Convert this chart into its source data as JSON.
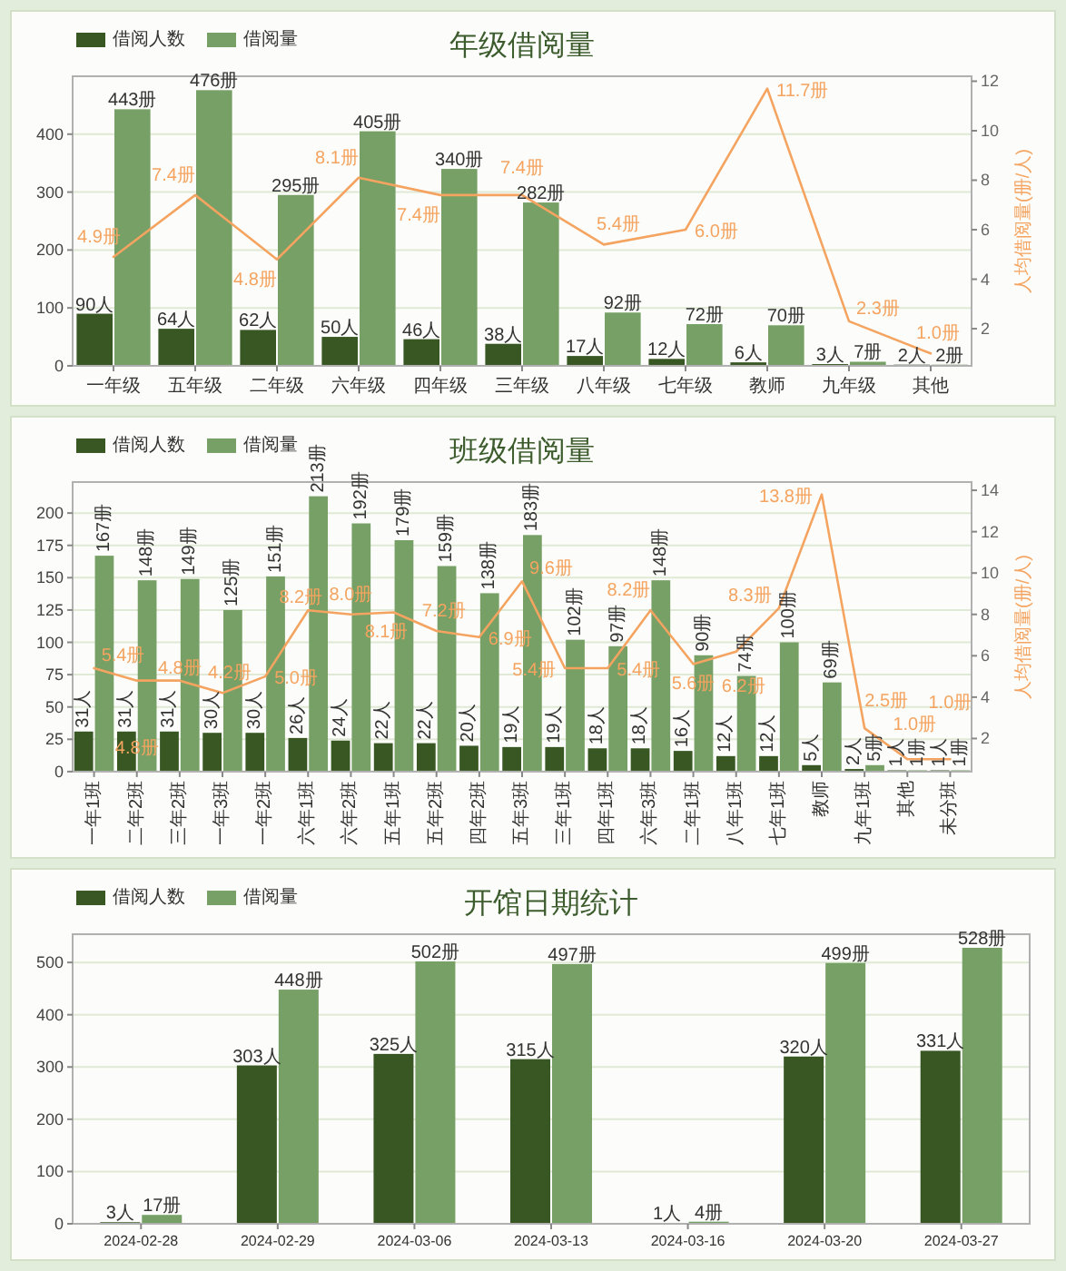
{
  "chart_data": [
    {
      "type": "bar",
      "title": "年级借阅量",
      "categories": [
        "一年级",
        "五年级",
        "二年级",
        "六年级",
        "四年级",
        "三年级",
        "八年级",
        "七年级",
        "教师",
        "九年级",
        "其他"
      ],
      "series": [
        {
          "name": "借阅人数",
          "color": "#385723",
          "values": [
            90,
            64,
            62,
            50,
            46,
            38,
            17,
            12,
            6,
            3,
            2
          ],
          "value_labels": [
            "90人",
            "64人",
            "62人",
            "50人",
            "46人",
            "38人",
            "17人",
            "12人",
            "6人",
            "3人",
            "2人"
          ]
        },
        {
          "name": "借阅量",
          "color": "#76a065",
          "values": [
            443,
            476,
            295,
            405,
            340,
            282,
            92,
            72,
            70,
            7,
            2
          ],
          "value_labels": [
            "443册",
            "476册",
            "295册",
            "405册",
            "340册",
            "282册",
            "92册",
            "72册",
            "70册",
            "7册",
            "2册"
          ]
        },
        {
          "type": "line",
          "axis": "y2",
          "color": "#f4a460",
          "values": [
            4.9,
            7.4,
            4.8,
            8.1,
            7.4,
            7.4,
            5.4,
            6.0,
            11.7,
            2.3,
            1.0
          ],
          "value_labels": [
            "4.9册",
            "7.4册",
            "4.8册",
            "8.1册",
            "7.4册",
            "7.4册",
            "5.4册",
            "6.0册",
            "11.7册",
            "2.3册",
            "1.0册"
          ]
        }
      ],
      "ylim": [
        0,
        500
      ],
      "yticks": [
        0,
        100,
        200,
        300,
        400
      ],
      "y2label": "人均借阅量(册/人)",
      "y2lim": [
        0.5,
        12.2
      ],
      "y2ticks": [
        2,
        4,
        6,
        8,
        10,
        12
      ],
      "grid": "y",
      "legend": "top left"
    },
    {
      "type": "bar",
      "title": "班级借阅量",
      "categories": [
        "一年1班",
        "二年2班",
        "三年2班",
        "一年3班",
        "一年2班",
        "六年1班",
        "六年2班",
        "五年1班",
        "五年2班",
        "四年2班",
        "五年3班",
        "三年1班",
        "四年1班",
        "六年3班",
        "二年1班",
        "八年1班",
        "七年1班",
        "教师",
        "九年1班",
        "其他",
        "未分班"
      ],
      "series": [
        {
          "name": "借阅人数",
          "color": "#385723",
          "values": [
            31,
            31,
            31,
            30,
            30,
            26,
            24,
            22,
            22,
            20,
            19,
            19,
            18,
            18,
            16,
            12,
            12,
            5,
            2,
            1,
            1
          ],
          "value_labels": [
            "31人",
            "31人",
            "31人",
            "30人",
            "30人",
            "26人",
            "24人",
            "22人",
            "22人",
            "20人",
            "19人",
            "19人",
            "18人",
            "18人",
            "16人",
            "12人",
            "12人",
            "5人",
            "2人",
            "1人",
            "1人"
          ]
        },
        {
          "name": "借阅量",
          "color": "#76a065",
          "values": [
            167,
            148,
            149,
            125,
            151,
            213,
            192,
            179,
            159,
            138,
            183,
            102,
            97,
            148,
            90,
            74,
            100,
            69,
            5,
            1,
            1
          ],
          "value_labels": [
            "167册",
            "148册",
            "149册",
            "125册",
            "151册",
            "213册",
            "192册",
            "179册",
            "159册",
            "138册",
            "183册",
            "102册",
            "97册",
            "148册",
            "90册",
            "74册",
            "100册",
            "69册",
            "5册",
            "1册",
            "1册"
          ]
        },
        {
          "type": "line",
          "axis": "y2",
          "color": "#f4a460",
          "values": [
            5.4,
            4.8,
            4.8,
            4.2,
            5.0,
            8.2,
            8.0,
            8.1,
            7.2,
            6.9,
            9.6,
            5.4,
            5.4,
            8.2,
            5.6,
            6.2,
            8.3,
            13.8,
            2.5,
            1.0,
            1.0
          ],
          "value_labels": [
            "5.4册",
            "4.8册",
            "4.8册",
            "4.2册",
            "5.0册",
            "8.2册",
            "8.0册",
            "8.1册",
            "7.2册",
            "6.9册",
            "9.6册",
            "5.4册",
            "5.4册",
            "8.2册",
            "5.6册",
            "6.2册",
            "8.3册",
            "13.8册",
            "2.5册",
            "1.0册",
            "1.0册"
          ]
        }
      ],
      "ylim": [
        0,
        224
      ],
      "yticks": [
        0,
        25,
        50,
        75,
        100,
        125,
        150,
        175,
        200
      ],
      "y2label": "人均借阅量(册/人)",
      "y2lim": [
        0.4,
        14.4
      ],
      "y2ticks": [
        2,
        4,
        6,
        8,
        10,
        12,
        14
      ],
      "grid": "y",
      "legend": "top left"
    },
    {
      "type": "bar",
      "title": "开馆日期统计",
      "categories": [
        "2024-02-28",
        "2024-02-29",
        "2024-03-06",
        "2024-03-13",
        "2024-03-16",
        "2024-03-20",
        "2024-03-27"
      ],
      "series": [
        {
          "name": "借阅人数",
          "color": "#385723",
          "values": [
            3,
            303,
            325,
            315,
            1,
            320,
            331
          ],
          "value_labels": [
            "3人",
            "303人",
            "325人",
            "315人",
            "1人",
            "320人",
            "331人"
          ]
        },
        {
          "name": "借阅量",
          "color": "#76a065",
          "values": [
            17,
            448,
            502,
            497,
            4,
            499,
            528
          ],
          "value_labels": [
            "17册",
            "448册",
            "502册",
            "497册",
            "4册",
            "499册",
            "528册"
          ]
        }
      ],
      "ylim": [
        0,
        554
      ],
      "yticks": [
        0,
        100,
        200,
        300,
        400,
        500
      ],
      "grid": "y",
      "legend": "top left"
    }
  ]
}
